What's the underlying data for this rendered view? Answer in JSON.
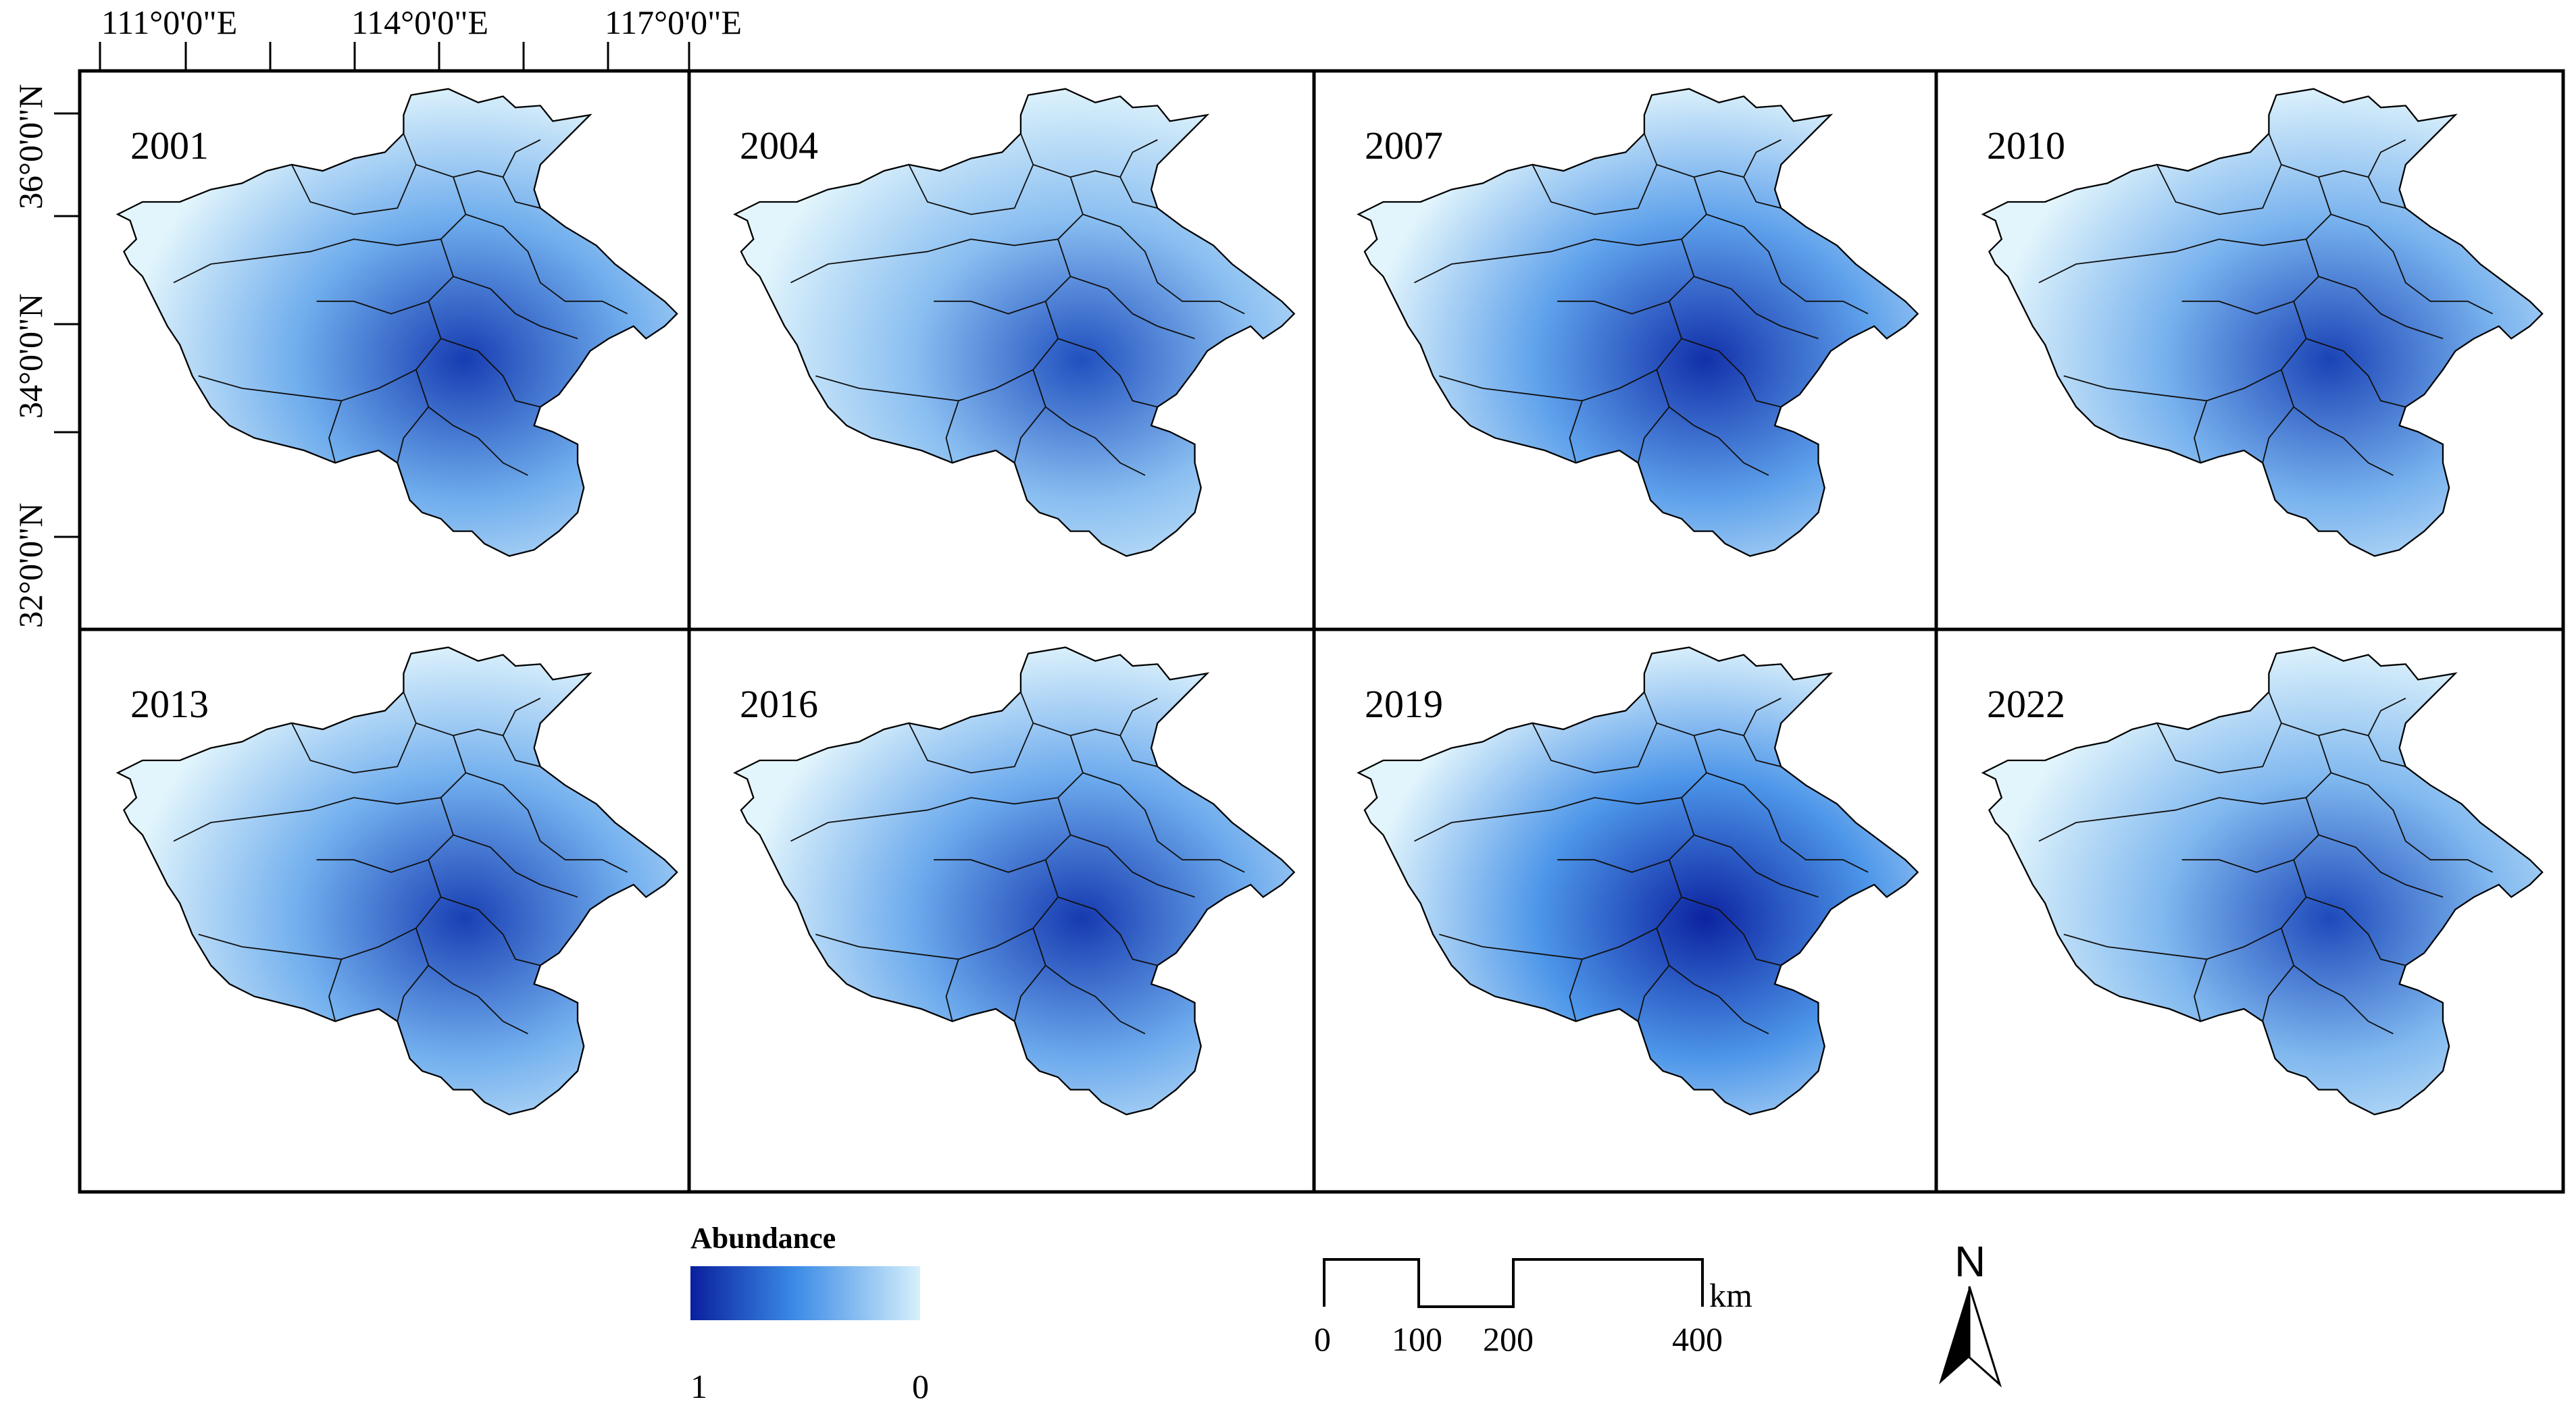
{
  "axes": {
    "longitude_labels": [
      "111°0'0\"E",
      "114°0'0\"E",
      "117°0'0\"E"
    ],
    "latitude_labels": [
      "36°0'0\"N",
      "34°0'0\"N",
      "32°0'0\"N"
    ]
  },
  "panels": [
    {
      "year": "2001",
      "intensity": 0.6
    },
    {
      "year": "2004",
      "intensity": 0.45
    },
    {
      "year": "2007",
      "intensity": 0.7
    },
    {
      "year": "2010",
      "intensity": 0.55
    },
    {
      "year": "2013",
      "intensity": 0.58
    },
    {
      "year": "2016",
      "intensity": 0.62
    },
    {
      "year": "2019",
      "intensity": 0.8
    },
    {
      "year": "2022",
      "intensity": 0.5
    }
  ],
  "legend": {
    "title": "Abundance",
    "min_label": "1",
    "max_label": "0",
    "color_dark": "#0a1f9e",
    "color_mid": "#3a8ae6",
    "color_light": "#d6f0fb"
  },
  "scale_bar": {
    "unit": "km",
    "labels": [
      "0",
      "100",
      "200",
      "400"
    ]
  },
  "north_arrow": {
    "label": "N"
  }
}
